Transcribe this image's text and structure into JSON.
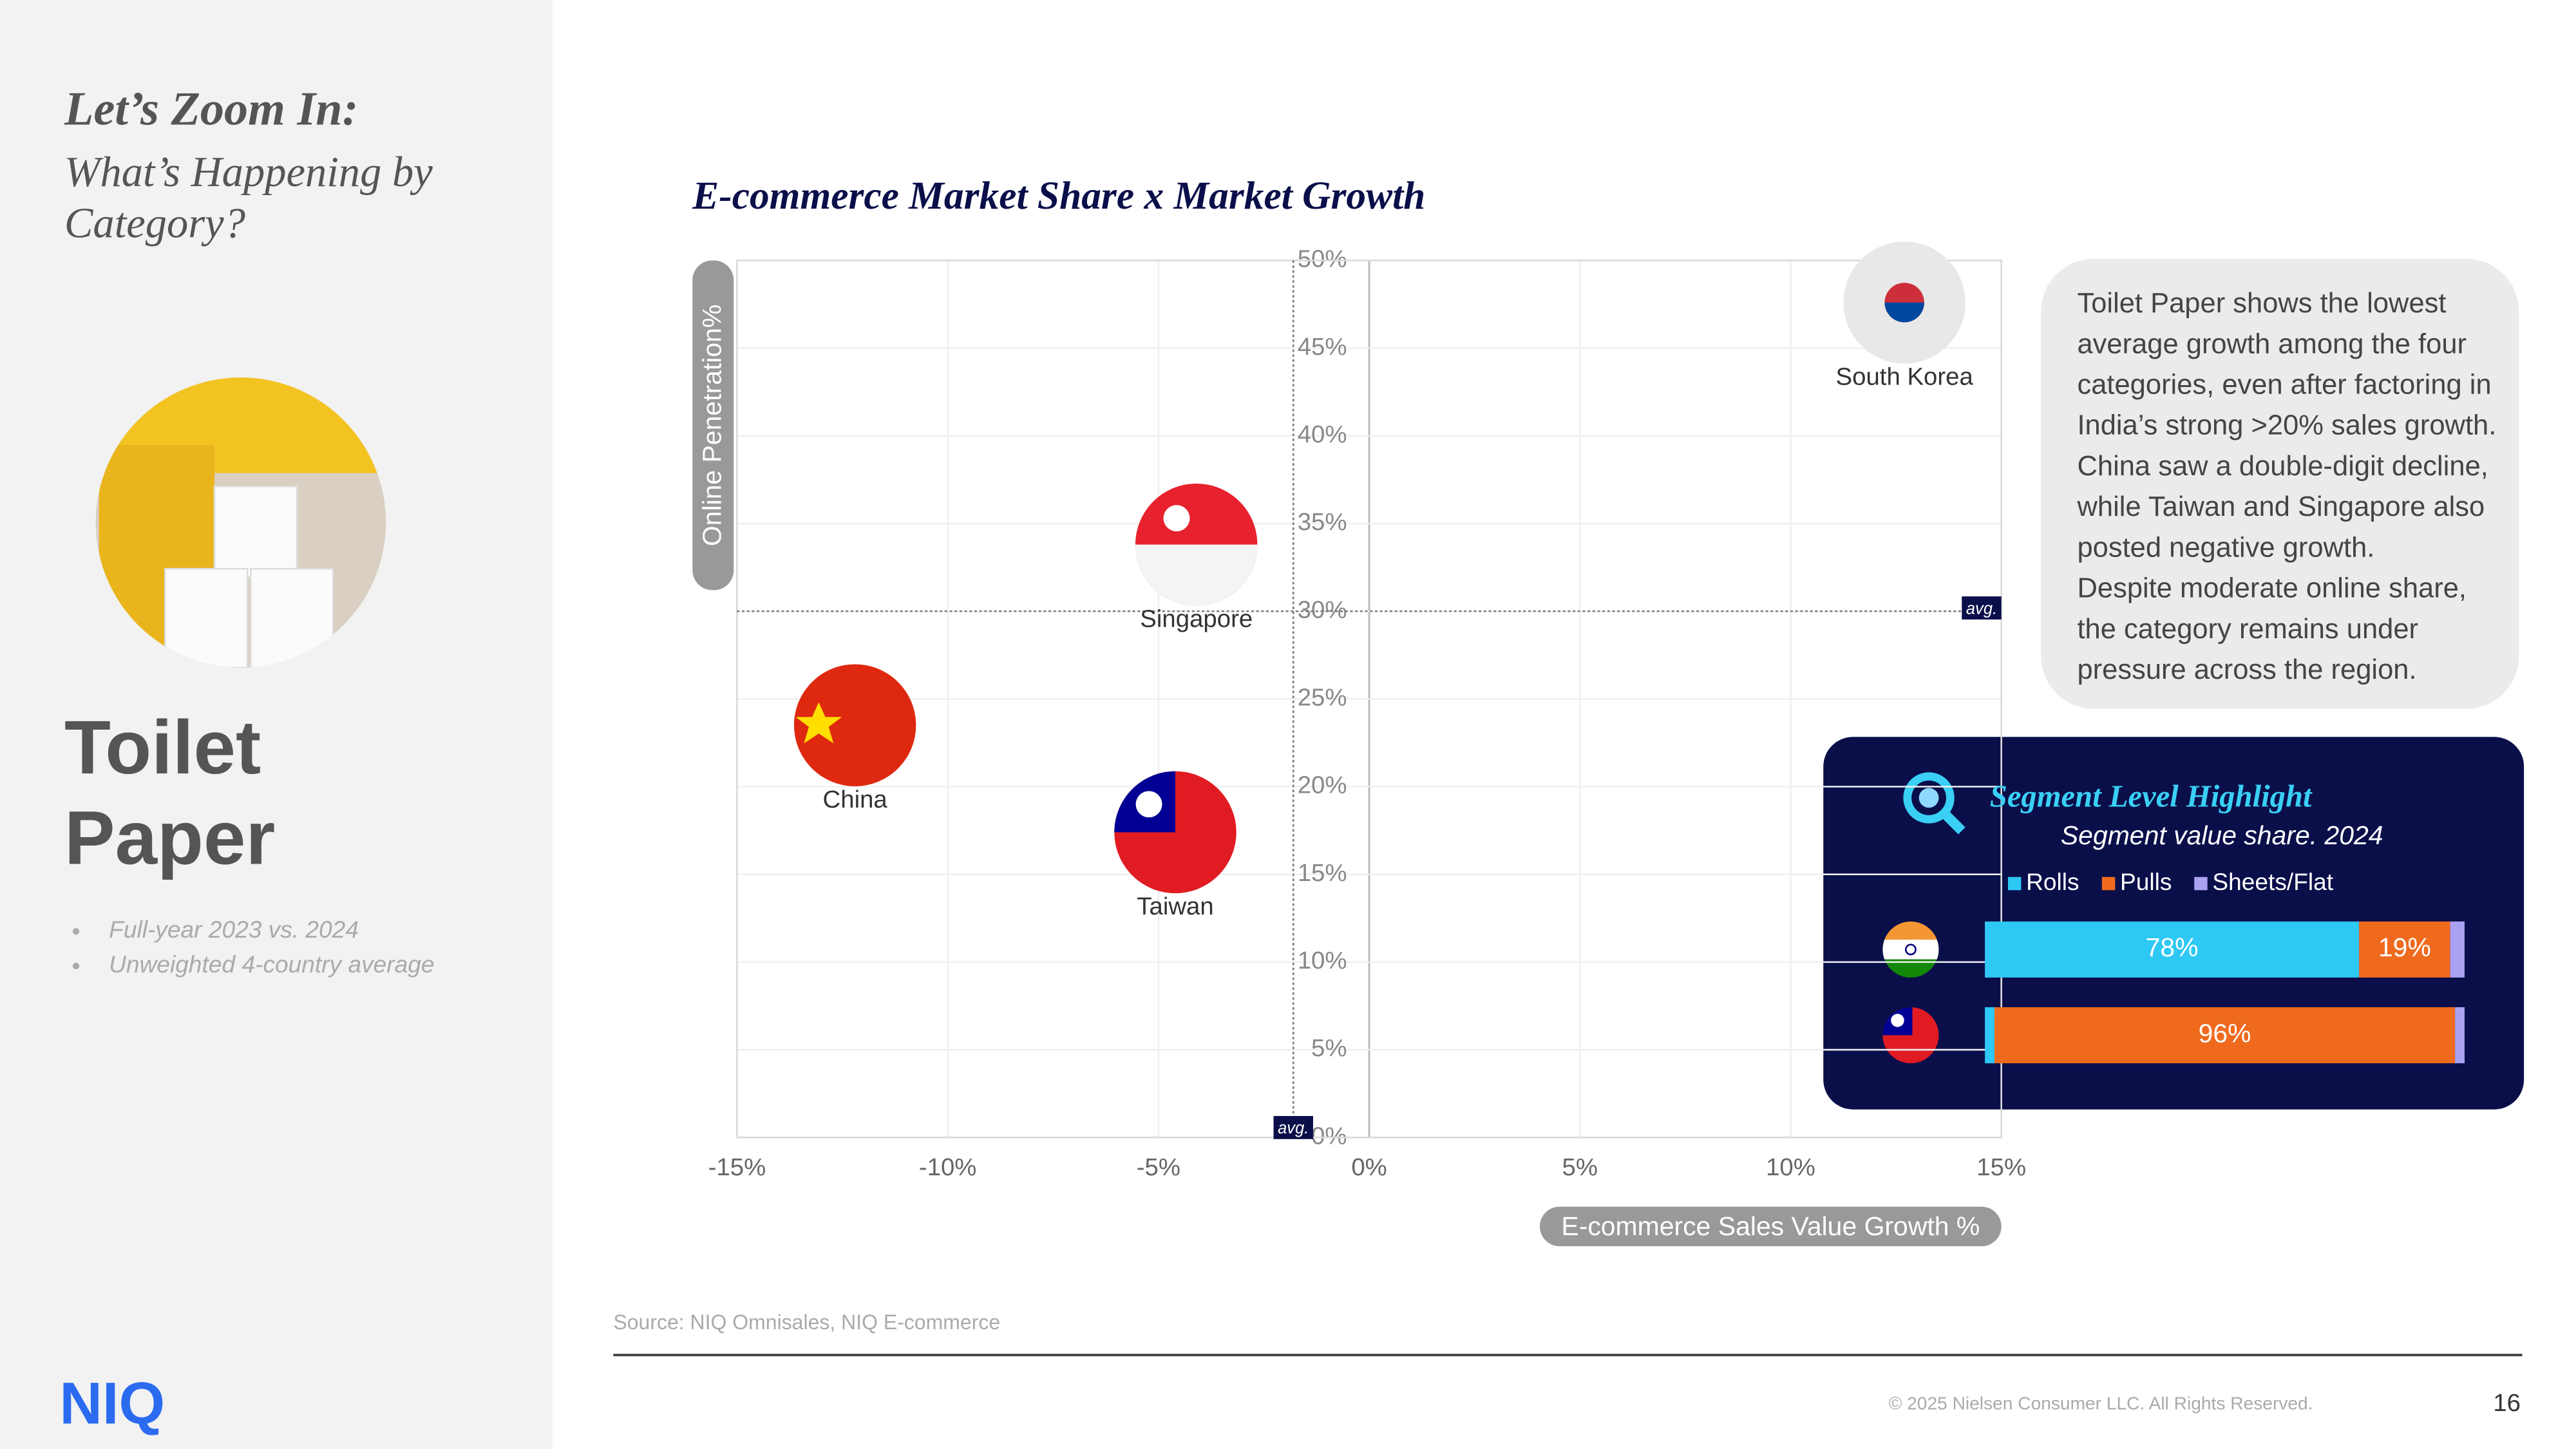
{
  "slide": {
    "heading": "Let’s Zoom In:",
    "subheading": [
      "What’s Happening by",
      "Category?"
    ],
    "category": [
      "Toilet",
      "Paper"
    ],
    "notes": [
      "Full-year 2023 vs. 2024",
      "Unweighted 4-country average"
    ],
    "callout": [
      "Toilet Paper shows the lowest",
      "average growth among the four",
      "categories, even after factoring in",
      "India’s strong >20% sales growth.",
      "China saw a double-digit decline,",
      "while Taiwan and Singapore also",
      "posted negative growth.",
      "Despite moderate online share,",
      "the category remains under",
      "pressure across the region."
    ],
    "source": "Source: NIQ Omnisales, NIQ E-commerce",
    "copyright": "© 2025 Nielsen Consumer LLC. All Rights Reserved.",
    "page": "16",
    "logo": "NIQ"
  },
  "chart_data": [
    {
      "type": "scatter",
      "title": "E-commerce Market Share x Market Growth",
      "xlabel": "E-commerce Sales Value Growth %",
      "ylabel": "Online Penetration%",
      "labels": [
        "South Korea",
        "Singapore",
        "China",
        "Taiwan"
      ],
      "x": [
        12.7,
        -4.1,
        -12.2,
        -4.6
      ],
      "values": [
        47.6,
        33.8,
        23.5,
        17.4
      ],
      "colors": [
        "#e8e8e8",
        "#e8212e",
        "#de2910",
        "#e11b22"
      ],
      "xlim": [
        -15,
        15
      ],
      "ylim": [
        0,
        50
      ],
      "xticks": [
        {
          "value": -15,
          "label": "-15%"
        },
        {
          "value": -10,
          "label": "-10%"
        },
        {
          "value": -5,
          "label": "-5%"
        },
        {
          "value": 0,
          "label": "0%"
        },
        {
          "value": 5,
          "label": "5%"
        },
        {
          "value": 10,
          "label": "10%"
        },
        {
          "value": 15,
          "label": "15%"
        }
      ],
      "yticks": [
        {
          "value": 0,
          "label": "0%"
        },
        {
          "value": 5,
          "label": "5%"
        },
        {
          "value": 10,
          "label": "10%"
        },
        {
          "value": 15,
          "label": "15%"
        },
        {
          "value": 20,
          "label": "20%"
        },
        {
          "value": 25,
          "label": "25%"
        },
        {
          "value": 30,
          "label": "30%"
        },
        {
          "value": 35,
          "label": "35%"
        },
        {
          "value": 40,
          "label": "40%"
        },
        {
          "value": 45,
          "label": "45%"
        },
        {
          "value": 50,
          "label": "50%"
        }
      ],
      "grid": true,
      "avg_x": -1.8,
      "avg_y": 30,
      "avg_label": "avg."
    },
    {
      "type": "bar",
      "orientation": "horizontal",
      "stacked": true,
      "title": "Segment Level Highlight",
      "subtitle": "Segment value share. 2024",
      "categories": [
        null,
        null
      ],
      "series": [
        {
          "name": "Rolls",
          "color": "#2ec8f5",
          "values": [
            78,
            2
          ],
          "value_labels": [
            "78%",
            null
          ]
        },
        {
          "name": "Pulls",
          "color": "#f06a1e",
          "values": [
            19,
            96
          ],
          "value_labels": [
            "19%",
            "96%"
          ]
        },
        {
          "name": "Sheets/Flat",
          "color": "#a9a2f2",
          "values": [
            3,
            2
          ],
          "value_labels": [
            null,
            null
          ]
        }
      ],
      "xlim": [
        0,
        100
      ]
    }
  ]
}
